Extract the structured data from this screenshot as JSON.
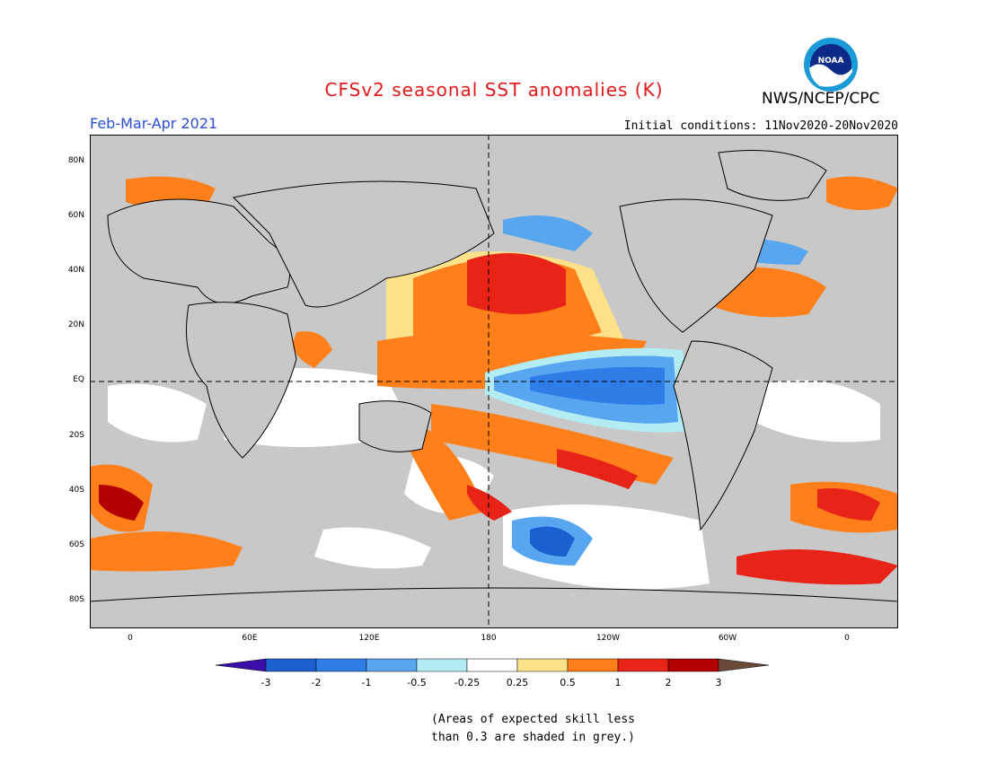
{
  "header": {
    "title": "CFSv2 seasonal SST anomalies (K)",
    "period": "Feb-Mar-Apr 2021",
    "initial_conditions": "Initial conditions: 11Nov2020-20Nov2020",
    "agency": "NWS/NCEP/CPC",
    "logo_text": "NOAA"
  },
  "map": {
    "lat_labels": [
      "80N",
      "60N",
      "40N",
      "20N",
      "EQ",
      "20S",
      "40S",
      "60S",
      "80S"
    ],
    "lon_labels": [
      "0",
      "60E",
      "120E",
      "180",
      "120W",
      "60W",
      "0"
    ]
  },
  "colorbar": {
    "labels": [
      "-3",
      "-2",
      "-1",
      "-0.5",
      "-0.25",
      "0.25",
      "0.5",
      "1",
      "2",
      "3"
    ],
    "colors": [
      "#3a0ea8",
      "#1c5fd1",
      "#2f7ee8",
      "#58a6f0",
      "#b4ecf4",
      "#ffffff",
      "#fde28a",
      "#ff7f1a",
      "#e82418",
      "#b30000",
      "#6b4a3a"
    ]
  },
  "footnote": {
    "line1": "(Areas of expected skill less",
    "line2": "than 0.3 are shaded in grey.)"
  }
}
